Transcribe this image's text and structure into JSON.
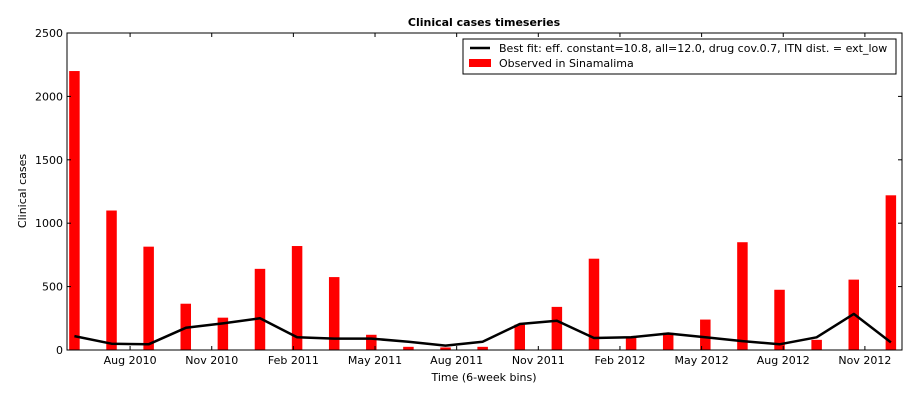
{
  "colors": {
    "bar": "#ff0000",
    "line": "#000000",
    "background": "#ffffff"
  },
  "chart_data": {
    "type": "bar",
    "title": "Clinical cases timeseries",
    "xlabel": "Time (6-week bins)",
    "ylabel": "Clinical cases",
    "ylim": [
      0,
      2500
    ],
    "yticks": [
      0,
      500,
      1000,
      1500,
      2000,
      2500
    ],
    "grid": false,
    "legend_position": "top-right",
    "xticks": [
      {
        "label": "Aug 2010",
        "pos": 1.5
      },
      {
        "label": "Nov 2010",
        "pos": 3.7
      },
      {
        "label": "Feb 2011",
        "pos": 5.9
      },
      {
        "label": "May 2011",
        "pos": 8.1
      },
      {
        "label": "Aug 2011",
        "pos": 10.3
      },
      {
        "label": "Nov 2011",
        "pos": 12.5
      },
      {
        "label": "Feb 2012",
        "pos": 14.7
      },
      {
        "label": "May 2012",
        "pos": 16.9
      },
      {
        "label": "Aug 2012",
        "pos": 19.1
      },
      {
        "label": "Nov 2012",
        "pos": 21.3
      }
    ],
    "series": [
      {
        "name": "Observed in Sinamalima",
        "type": "bar",
        "x": [
          0,
          1,
          2,
          3,
          4,
          5,
          6,
          7,
          8,
          9,
          10,
          11,
          12,
          13,
          14,
          15,
          16,
          17,
          18,
          19,
          20,
          21,
          22
        ],
        "values": [
          2200,
          1100,
          815,
          365,
          255,
          640,
          820,
          575,
          120,
          25,
          20,
          25,
          200,
          340,
          720,
          100,
          135,
          240,
          850,
          475,
          80,
          555,
          1220
        ]
      },
      {
        "name": "Best fit: eff. constant=10.8, all=12.0, drug cov.0.7, ITN dist. = ext_low",
        "type": "line",
        "x": [
          0,
          1,
          2,
          3,
          4,
          5,
          6,
          7,
          8,
          9,
          10,
          11,
          12,
          13,
          14,
          15,
          16,
          17,
          18,
          19,
          20,
          21,
          22
        ],
        "values": [
          110,
          50,
          45,
          175,
          210,
          250,
          100,
          90,
          90,
          65,
          35,
          65,
          205,
          230,
          95,
          100,
          130,
          100,
          70,
          45,
          100,
          285,
          60
        ]
      }
    ]
  }
}
